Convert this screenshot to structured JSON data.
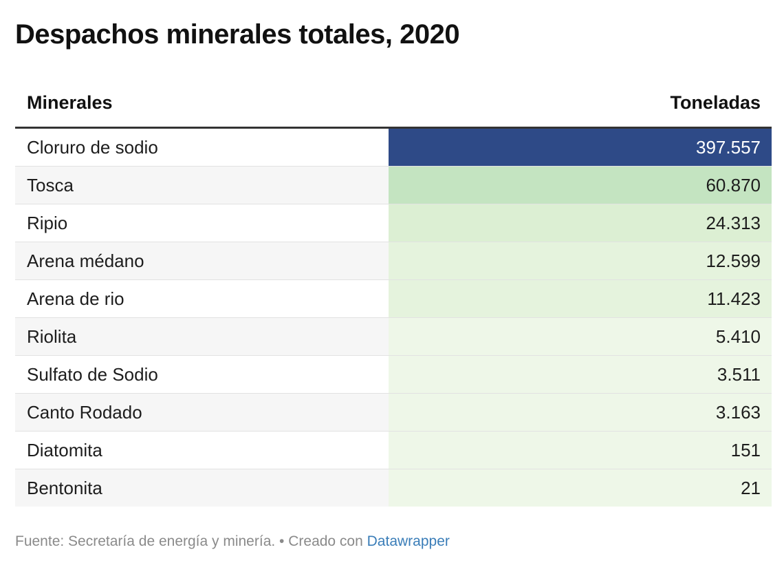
{
  "title": "Despachos minerales totales, 2020",
  "columns": {
    "name": "Minerales",
    "value": "Toneladas"
  },
  "colors": {
    "scale": [
      "#eef7e8",
      "#e5f3dd",
      "#dcefd3",
      "#c4e4c1",
      "#2e4a87"
    ],
    "text_dark": "#1d1d1d",
    "text_light": "#ffffff"
  },
  "footer": {
    "source": "Fuente: Secretaría de energía y minería. • Creado con ",
    "link": "Datawrapper"
  },
  "chart_data": {
    "type": "table",
    "title": "Despachos minerales totales, 2020",
    "columns": [
      "Minerales",
      "Toneladas"
    ],
    "rows": [
      {
        "name": "Cloruro de sodio",
        "value": 397557,
        "display": "397.557"
      },
      {
        "name": "Tosca",
        "value": 60870,
        "display": "60.870"
      },
      {
        "name": "Ripio",
        "value": 24313,
        "display": "24.313"
      },
      {
        "name": "Arena médano",
        "value": 12599,
        "display": "12.599"
      },
      {
        "name": "Arena de rio",
        "value": 11423,
        "display": "11.423"
      },
      {
        "name": "Riolita",
        "value": 5410,
        "display": "5.410"
      },
      {
        "name": "Sulfato de Sodio",
        "value": 3511,
        "display": "3.511"
      },
      {
        "name": "Canto Rodado",
        "value": 3163,
        "display": "3.163"
      },
      {
        "name": "Diatomita",
        "value": 151,
        "display": "151"
      },
      {
        "name": "Bentonita",
        "value": 21,
        "display": "21"
      }
    ]
  }
}
